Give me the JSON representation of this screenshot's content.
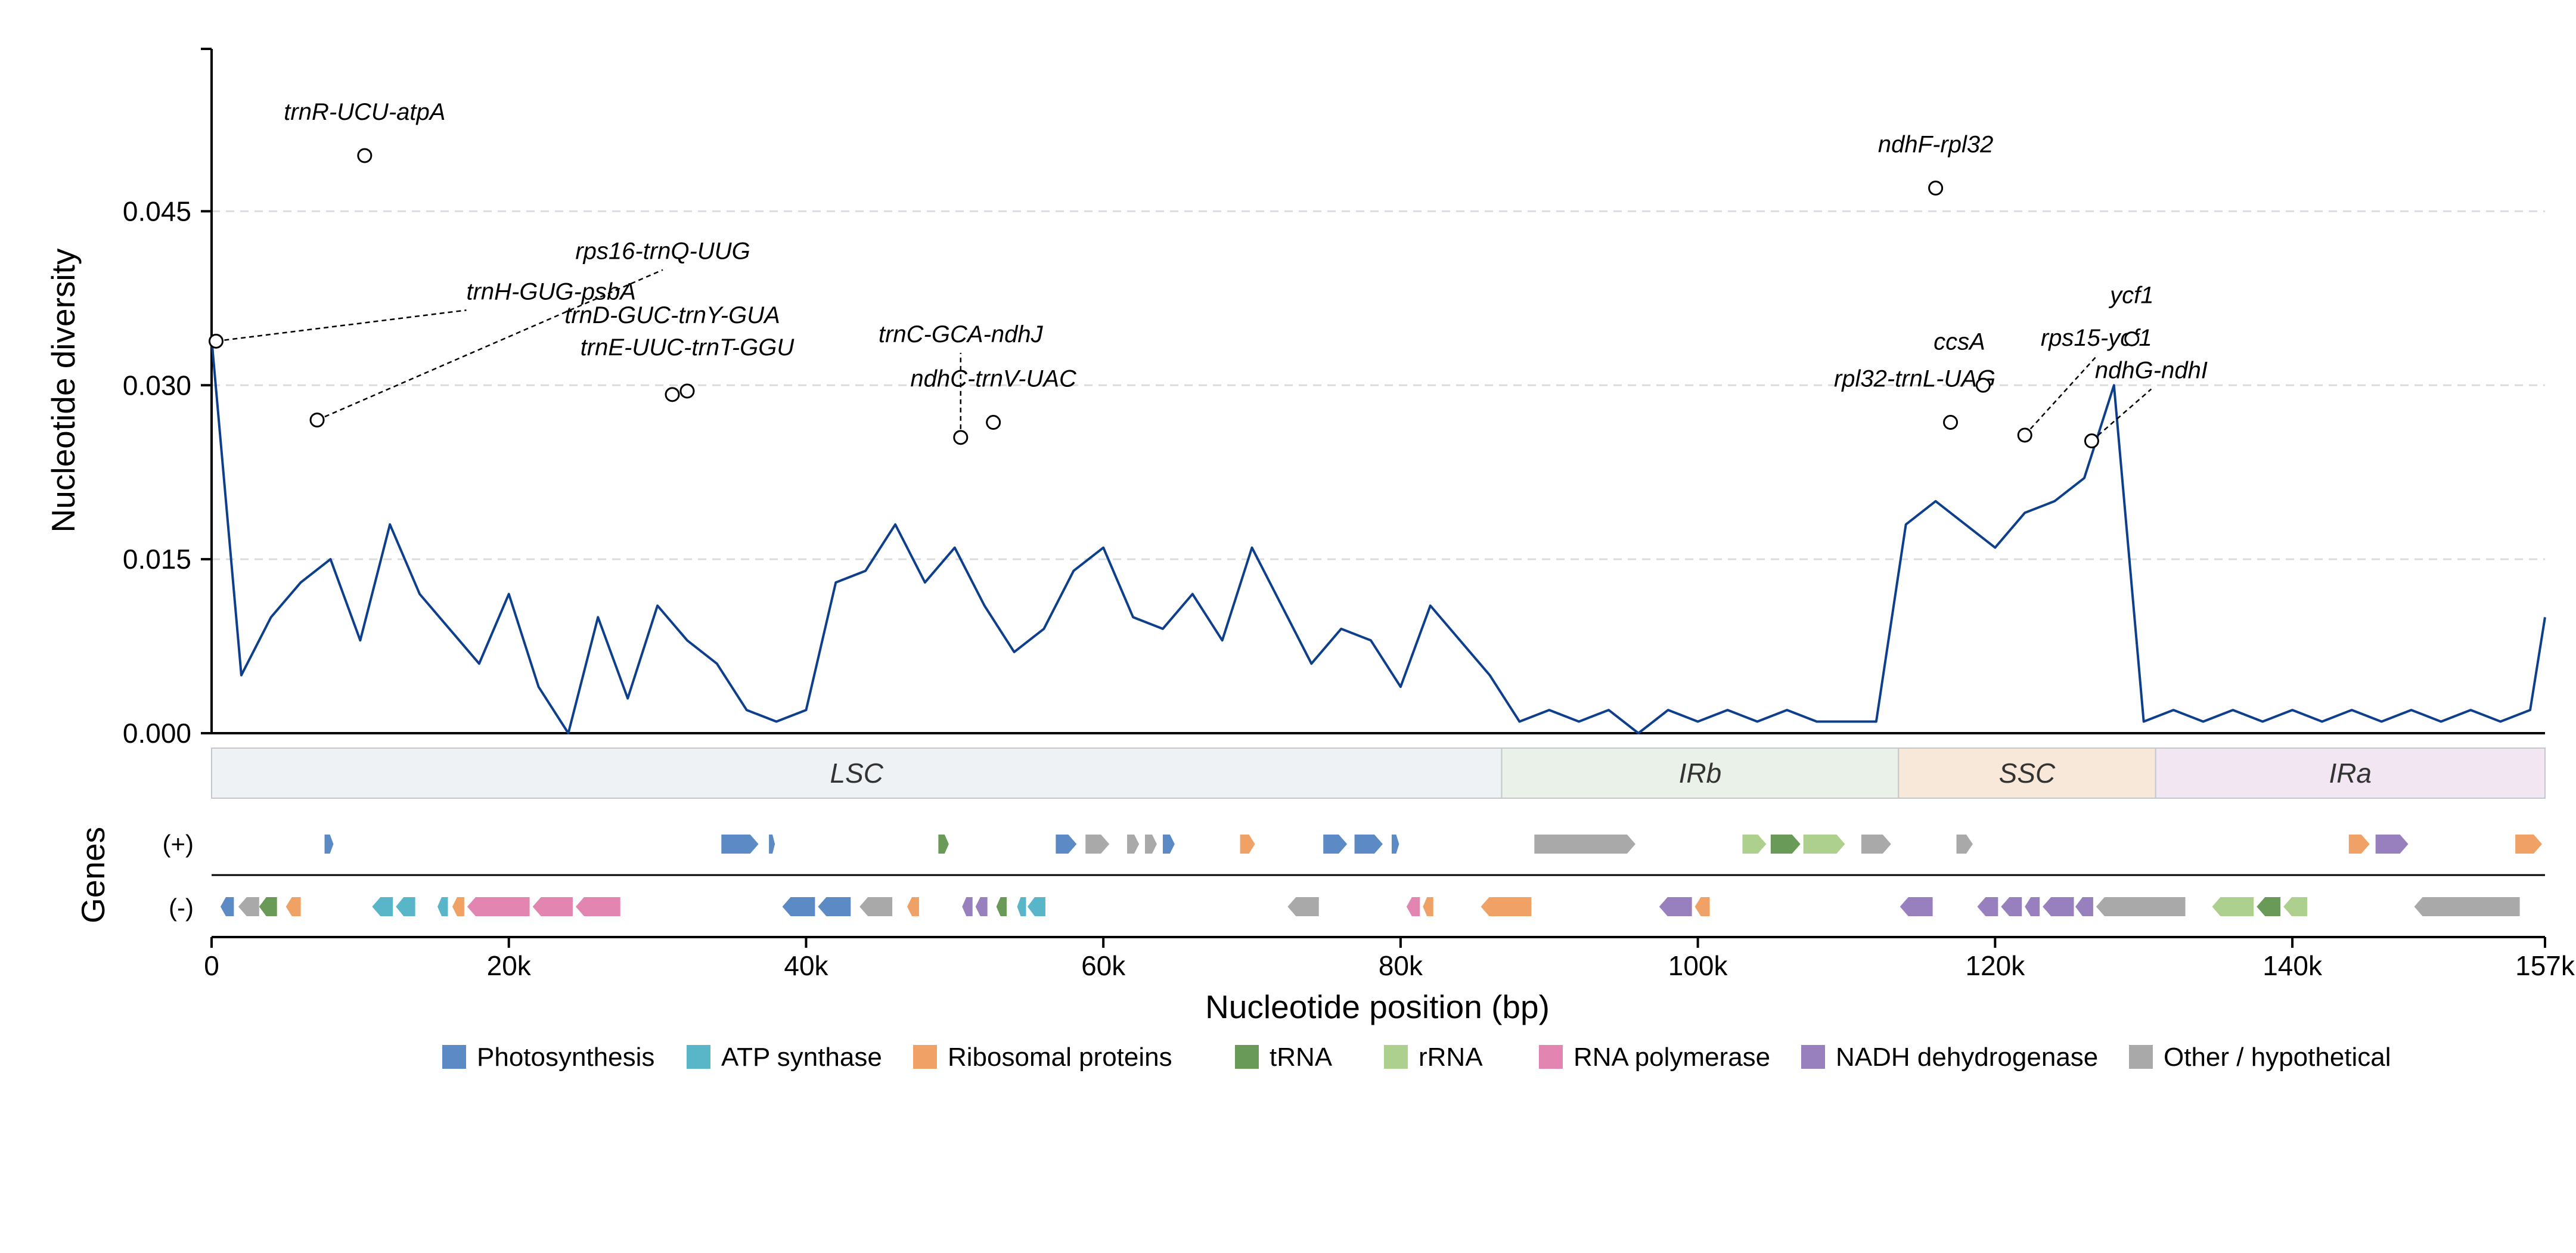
{
  "chart_data": {
    "type": "line",
    "ylabel": "Nucleotide diversity",
    "xlabel": "Nucleotide position (bp)",
    "genes_label": "Genes",
    "strand_plus": "(+)",
    "strand_minus": "(-)",
    "xlim": [
      0,
      157000
    ],
    "ylim": [
      0,
      0.059
    ],
    "y_ticks": [
      0.0,
      0.015,
      0.03,
      0.045
    ],
    "y_tick_labels": [
      "0.000",
      "0.015",
      "0.030",
      "0.045"
    ],
    "x_ticks": [
      0,
      20000,
      40000,
      60000,
      80000,
      100000,
      120000,
      140000,
      157000
    ],
    "x_tick_labels": [
      "0",
      "20k",
      "40k",
      "60k",
      "80k",
      "100k",
      "120k",
      "140k",
      "157k"
    ],
    "grid": "horizontal dashed",
    "line_color": "#0d3f8c",
    "series": [
      {
        "x": [
          0,
          2000,
          4000,
          6000,
          8000,
          10000,
          12000,
          14000,
          16000,
          18000,
          20000,
          22000,
          24000,
          26000,
          28000,
          30000,
          32000,
          34000,
          36000,
          38000,
          40000,
          42000,
          44000,
          46000,
          48000,
          50000,
          52000,
          54000,
          56000,
          58000,
          60000,
          62000,
          64000,
          66000,
          68000,
          70000,
          72000,
          74000,
          76000,
          78000,
          80000,
          82000,
          84000,
          86000,
          88000,
          90000,
          92000,
          94000,
          96000,
          98000,
          100000,
          102000,
          104000,
          106000,
          108000,
          110000,
          112000,
          114000,
          116000,
          118000,
          120000,
          122000,
          124000,
          126000,
          128000,
          130000,
          132000,
          134000,
          136000,
          138000,
          140000,
          142000,
          144000,
          146000,
          148000,
          150000,
          152000,
          154000,
          156000,
          157000
        ],
        "y": [
          0.034,
          0.005,
          0.01,
          0.013,
          0.015,
          0.008,
          0.018,
          0.012,
          0.009,
          0.006,
          0.012,
          0.004,
          0.0,
          0.01,
          0.003,
          0.011,
          0.008,
          0.006,
          0.002,
          0.001,
          0.002,
          0.013,
          0.014,
          0.018,
          0.013,
          0.016,
          0.011,
          0.007,
          0.009,
          0.014,
          0.016,
          0.01,
          0.009,
          0.012,
          0.008,
          0.016,
          0.011,
          0.006,
          0.009,
          0.008,
          0.004,
          0.011,
          0.008,
          0.005,
          0.001,
          0.002,
          0.001,
          0.002,
          0.0,
          0.002,
          0.001,
          0.002,
          0.001,
          0.002,
          0.001,
          0.001,
          0.001,
          0.018,
          0.02,
          0.018,
          0.016,
          0.019,
          0.02,
          0.022,
          0.03,
          0.001,
          0.002,
          0.001,
          0.002,
          0.001,
          0.002,
          0.001,
          0.002,
          0.001,
          0.002,
          0.001,
          0.002,
          0.001,
          0.002,
          0.01
        ]
      }
    ],
    "peaks": [
      {
        "label": "trnH-GUG-psbA",
        "x": 300,
        "y": 0.0338
      },
      {
        "label": "trnR-UCU-atpA",
        "x": 10300,
        "y": 0.0498
      },
      {
        "label": "rps16-trnQ-UUG",
        "x": 7100,
        "y": 0.027
      },
      {
        "label": "trnD-GUC-trnY-GUA",
        "x": 31000,
        "y": 0.0292
      },
      {
        "label": "trnE-UUC-trnT-GGU",
        "x": 32000,
        "y": 0.0295
      },
      {
        "label": "trnC-GCA-ndhJ",
        "x": 50400,
        "y": 0.0255
      },
      {
        "label": "ndhC-trnV-UAC",
        "x": 52600,
        "y": 0.0268
      },
      {
        "label": "ndhF-rpl32",
        "x": 116000,
        "y": 0.047
      },
      {
        "label": "rpl32-trnL-UAG",
        "x": 117000,
        "y": 0.0268
      },
      {
        "label": "ccsA",
        "x": 119200,
        "y": 0.03
      },
      {
        "label": "rps15-ycf1",
        "x": 122000,
        "y": 0.0257
      },
      {
        "label": "ndhG-ndhI",
        "x": 126500,
        "y": 0.0252
      },
      {
        "label": "ycf1",
        "x": 129200,
        "y": 0.034
      }
    ],
    "regions": [
      {
        "label": "LSC",
        "start": 0,
        "end": 86800,
        "color": "#eef2f5"
      },
      {
        "label": "IRb",
        "start": 86800,
        "end": 113500,
        "color": "#eaf1e8"
      },
      {
        "label": "SSC",
        "start": 113500,
        "end": 130800,
        "color": "#f8e8da"
      },
      {
        "label": "IRa",
        "start": 130800,
        "end": 157000,
        "color": "#f1e6f1"
      }
    ],
    "legend": [
      {
        "label": "Photosynthesis",
        "color": "#5b8ac4"
      },
      {
        "label": "ATP synthase",
        "color": "#59b6c9"
      },
      {
        "label": "Ribosomal proteins",
        "color": "#f0a266"
      },
      {
        "label": "tRNA",
        "color": "#6a9a58"
      },
      {
        "label": "rRNA",
        "color": "#aed08e"
      },
      {
        "label": "RNA polymerase",
        "color": "#e286b1"
      },
      {
        "label": "NADH dehydrogenase",
        "color": "#9880be"
      },
      {
        "label": "Other / hypothetical",
        "color": "#a9a9a9"
      }
    ],
    "genes_plus": [
      {
        "start": 7600,
        "end": 8200,
        "cat": "Photosynthesis"
      },
      {
        "start": 34300,
        "end": 36800,
        "cat": "Photosynthesis"
      },
      {
        "start": 37500,
        "end": 37900,
        "cat": "Photosynthesis"
      },
      {
        "start": 48900,
        "end": 49600,
        "cat": "tRNA"
      },
      {
        "start": 56800,
        "end": 58200,
        "cat": "Photosynthesis"
      },
      {
        "start": 58800,
        "end": 60400,
        "cat": "Other / hypothetical"
      },
      {
        "start": 61600,
        "end": 62400,
        "cat": "Other / hypothetical"
      },
      {
        "start": 62800,
        "end": 63600,
        "cat": "Other / hypothetical"
      },
      {
        "start": 64000,
        "end": 64800,
        "cat": "Photosynthesis"
      },
      {
        "start": 69200,
        "end": 70200,
        "cat": "Ribosomal proteins"
      },
      {
        "start": 74800,
        "end": 76400,
        "cat": "Photosynthesis"
      },
      {
        "start": 76900,
        "end": 78800,
        "cat": "Photosynthesis"
      },
      {
        "start": 79400,
        "end": 79900,
        "cat": "Photosynthesis"
      },
      {
        "start": 89000,
        "end": 95800,
        "cat": "Other / hypothetical"
      },
      {
        "start": 103000,
        "end": 104600,
        "cat": "rRNA"
      },
      {
        "start": 104900,
        "end": 106900,
        "cat": "tRNA"
      },
      {
        "start": 107100,
        "end": 109900,
        "cat": "rRNA"
      },
      {
        "start": 111000,
        "end": 113000,
        "cat": "Other / hypothetical"
      },
      {
        "start": 117400,
        "end": 118500,
        "cat": "Other / hypothetical"
      },
      {
        "start": 143800,
        "end": 145200,
        "cat": "Ribosomal proteins"
      },
      {
        "start": 145600,
        "end": 147800,
        "cat": "NADH dehydrogenase"
      },
      {
        "start": 155000,
        "end": 156800,
        "cat": "Ribosomal proteins"
      }
    ],
    "genes_minus": [
      {
        "start": 600,
        "end": 1500,
        "cat": "Photosynthesis"
      },
      {
        "start": 1800,
        "end": 3200,
        "cat": "Other / hypothetical"
      },
      {
        "start": 3200,
        "end": 4400,
        "cat": "tRNA"
      },
      {
        "start": 5000,
        "end": 6000,
        "cat": "Ribosomal proteins"
      },
      {
        "start": 10800,
        "end": 12200,
        "cat": "ATP synthase"
      },
      {
        "start": 12400,
        "end": 13700,
        "cat": "ATP synthase"
      },
      {
        "start": 15200,
        "end": 15900,
        "cat": "ATP synthase"
      },
      {
        "start": 16200,
        "end": 17000,
        "cat": "Ribosomal proteins"
      },
      {
        "start": 17200,
        "end": 21400,
        "cat": "RNA polymerase"
      },
      {
        "start": 21600,
        "end": 24300,
        "cat": "RNA polymerase"
      },
      {
        "start": 24500,
        "end": 27500,
        "cat": "RNA polymerase"
      },
      {
        "start": 38400,
        "end": 40600,
        "cat": "Photosynthesis"
      },
      {
        "start": 40800,
        "end": 43000,
        "cat": "Photosynthesis"
      },
      {
        "start": 43600,
        "end": 45800,
        "cat": "Other / hypothetical"
      },
      {
        "start": 46800,
        "end": 47600,
        "cat": "Ribosomal proteins"
      },
      {
        "start": 50500,
        "end": 51200,
        "cat": "NADH dehydrogenase"
      },
      {
        "start": 51400,
        "end": 52200,
        "cat": "NADH dehydrogenase"
      },
      {
        "start": 52800,
        "end": 53500,
        "cat": "tRNA"
      },
      {
        "start": 54200,
        "end": 54800,
        "cat": "ATP synthase"
      },
      {
        "start": 54900,
        "end": 56100,
        "cat": "ATP synthase"
      },
      {
        "start": 72400,
        "end": 74500,
        "cat": "Other / hypothetical"
      },
      {
        "start": 80400,
        "end": 81300,
        "cat": "RNA polymerase"
      },
      {
        "start": 81500,
        "end": 82200,
        "cat": "Ribosomal proteins"
      },
      {
        "start": 85400,
        "end": 88800,
        "cat": "Ribosomal proteins"
      },
      {
        "start": 97400,
        "end": 99600,
        "cat": "NADH dehydrogenase"
      },
      {
        "start": 99800,
        "end": 100800,
        "cat": "Ribosomal proteins"
      },
      {
        "start": 113600,
        "end": 115800,
        "cat": "NADH dehydrogenase"
      },
      {
        "start": 118800,
        "end": 120200,
        "cat": "NADH dehydrogenase"
      },
      {
        "start": 120400,
        "end": 121800,
        "cat": "NADH dehydrogenase"
      },
      {
        "start": 122000,
        "end": 123000,
        "cat": "NADH dehydrogenase"
      },
      {
        "start": 123200,
        "end": 125300,
        "cat": "NADH dehydrogenase"
      },
      {
        "start": 125400,
        "end": 126600,
        "cat": "NADH dehydrogenase"
      },
      {
        "start": 126800,
        "end": 132800,
        "cat": "Other / hypothetical"
      },
      {
        "start": 134600,
        "end": 137400,
        "cat": "rRNA"
      },
      {
        "start": 137600,
        "end": 139200,
        "cat": "tRNA"
      },
      {
        "start": 139400,
        "end": 141000,
        "cat": "rRNA"
      },
      {
        "start": 148200,
        "end": 155300,
        "cat": "Other / hypothetical"
      }
    ]
  }
}
